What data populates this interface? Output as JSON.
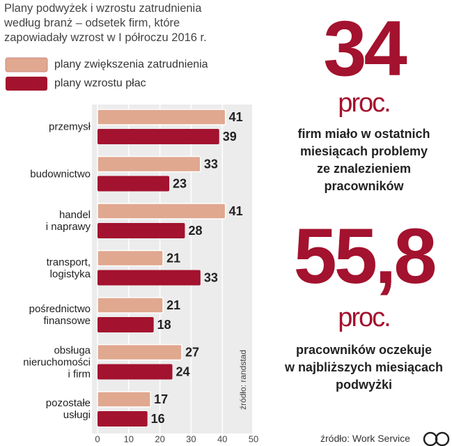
{
  "chart_data": {
    "type": "bar",
    "orientation": "horizontal",
    "title": "Plany podwyżek i wzrostu zatrudnienia\nwedług branż – odsetek firm, które\nzapowiadały wzrost w I półroczu 2016 r.",
    "categories": [
      "przemysł",
      "budownictwo",
      "handel\ni naprawy",
      "transport,\nlogistyka",
      "pośrednictwo\nfinansowe",
      "obsługa\nnieruchomości\ni firm",
      "pozostałe\nusługi"
    ],
    "series": [
      {
        "name": "plany zwiększenia zatrudnienia",
        "color": "#e0a88f",
        "values": [
          41,
          33,
          41,
          21,
          21,
          27,
          17
        ]
      },
      {
        "name": "plany wzrostu płac",
        "color": "#a3122e",
        "values": [
          39,
          23,
          28,
          33,
          18,
          24,
          16
        ]
      }
    ],
    "xlim": [
      0,
      50
    ],
    "xticks": [
      0,
      10,
      20,
      30,
      40,
      50
    ],
    "grid": true,
    "source_inner": "źródło: randstad"
  },
  "side": {
    "stat1": "34",
    "unit1": "proc.",
    "text1": "firm miało w ostatnich\nmiesiącach problemy\nze znalezieniem\npracowników",
    "stat2": "55,8",
    "unit2": "proc.",
    "text2": "pracowników oczekuje\nw najbliższych miesiącach\npodwyżki"
  },
  "source": "źródło: Work Service"
}
